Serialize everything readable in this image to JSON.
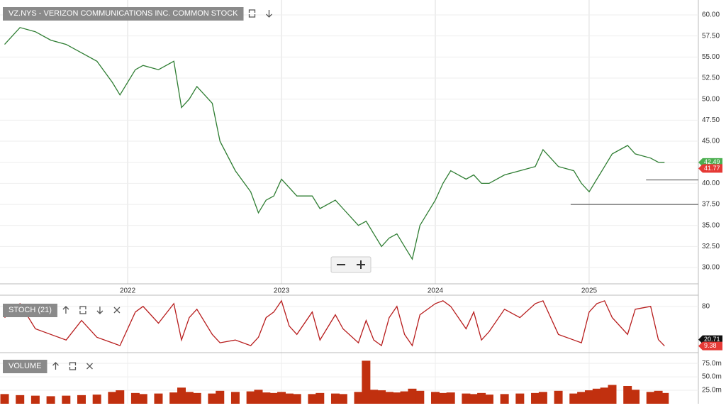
{
  "chart_data": [
    {
      "type": "line",
      "title": "VZ.NYS - VERIZON COMMUNICATIONS INC. COMMON STOCK",
      "color": "#2e7d32",
      "x": [
        2021.2,
        2021.3,
        2021.4,
        2021.5,
        2021.6,
        2021.7,
        2021.8,
        2021.9,
        2021.95,
        2022.05,
        2022.1,
        2022.2,
        2022.3,
        2022.35,
        2022.4,
        2022.45,
        2022.55,
        2022.6,
        2022.7,
        2022.8,
        2022.85,
        2022.9,
        2022.95,
        2023.0,
        2023.05,
        2023.1,
        2023.2,
        2023.25,
        2023.35,
        2023.4,
        2023.5,
        2023.55,
        2023.6,
        2023.65,
        2023.7,
        2023.75,
        2023.8,
        2023.85,
        2023.9,
        2024.0,
        2024.05,
        2024.1,
        2024.2,
        2024.25,
        2024.3,
        2024.35,
        2024.45,
        2024.55,
        2024.65,
        2024.7,
        2024.8,
        2024.9,
        2024.95,
        2025.0,
        2025.05,
        2025.1,
        2025.15,
        2025.25,
        2025.3,
        2025.4,
        2025.45,
        2025.49
      ],
      "values": [
        56.5,
        58.5,
        58,
        57,
        56.5,
        55.5,
        54.5,
        52,
        50.5,
        53.5,
        54,
        53.5,
        54.5,
        49,
        50,
        51.5,
        49.5,
        45,
        41.5,
        39,
        36.5,
        38,
        38.5,
        40.5,
        39.5,
        38.5,
        38.5,
        37,
        38,
        37,
        35,
        35.5,
        34,
        32.5,
        33.5,
        34,
        32.5,
        31,
        35,
        38,
        40,
        41.5,
        40.5,
        41,
        40,
        40,
        41,
        41.5,
        42,
        44,
        42,
        41.5,
        40,
        39,
        40.5,
        42,
        43.5,
        44.5,
        43.5,
        43,
        42.5,
        42.49
      ],
      "xlim": [
        2021.17,
        2025.71
      ],
      "xticks": [
        2022,
        2023,
        2024,
        2025
      ],
      "ylim": [
        28.07,
        61.77
      ],
      "yticks": [
        {
          "value": 60,
          "label": "60.00"
        },
        {
          "value": 57.5,
          "label": "57.50"
        },
        {
          "value": 55,
          "label": "55.00"
        },
        {
          "value": 52.5,
          "label": "52.50"
        },
        {
          "value": 50,
          "label": "50.00"
        },
        {
          "value": 47.5,
          "label": "47.50"
        },
        {
          "value": 45,
          "label": "45.00"
        },
        {
          "value": 42.5,
          "label": "42.50"
        },
        {
          "value": 40,
          "label": "40.00"
        },
        {
          "value": 37.5,
          "label": "37.50"
        },
        {
          "value": 35,
          "label": "35.00"
        },
        {
          "value": 32.5,
          "label": "32.50"
        },
        {
          "value": 30,
          "label": "30.00"
        }
      ],
      "grid": true,
      "tags": [
        {
          "value": 42.49,
          "color": "#4caf50"
        },
        {
          "value": 41.77,
          "color": "#e53935"
        }
      ],
      "hlines": [
        {
          "value": 37.5,
          "from": 2024.88
        },
        {
          "value": 40.4,
          "from": 2025.37
        }
      ]
    },
    {
      "type": "line",
      "title": "STOCH (21)",
      "color": "#b71c1c",
      "values": [
        60,
        85,
        40,
        30,
        20,
        55,
        25,
        15,
        10,
        70,
        80,
        50,
        85,
        20,
        60,
        75,
        30,
        15,
        20,
        10,
        25,
        60,
        70,
        90,
        45,
        30,
        70,
        20,
        65,
        40,
        15,
        55,
        20,
        10,
        60,
        80,
        30,
        10,
        65,
        85,
        90,
        80,
        40,
        70,
        20,
        35,
        75,
        60,
        85,
        90,
        30,
        20,
        15,
        70,
        85,
        90,
        60,
        30,
        75,
        80,
        20.71,
        9.38
      ],
      "ylim": [
        0,
        100
      ],
      "yticks": [
        80
      ],
      "tags": [
        {
          "value": 20.71,
          "color": "#111"
        },
        {
          "value": 9.38,
          "color": "#e53935"
        }
      ]
    },
    {
      "type": "bar",
      "title": "VOLUME",
      "color": "#c1300f",
      "values": [
        18000000,
        16000000,
        15000000,
        14000000,
        15000000,
        16000000,
        17000000,
        22000000,
        25000000,
        20000000,
        18000000,
        19000000,
        21000000,
        30000000,
        22000000,
        20000000,
        19000000,
        24000000,
        22000000,
        23000000,
        26000000,
        21000000,
        20000000,
        22000000,
        19000000,
        18000000,
        18000000,
        20000000,
        19000000,
        18000000,
        22000000,
        80000000,
        26000000,
        25000000,
        22000000,
        21000000,
        23000000,
        28000000,
        24000000,
        22000000,
        20000000,
        21000000,
        19000000,
        18000000,
        20000000,
        17000000,
        18000000,
        19000000,
        20000000,
        22000000,
        24000000,
        19000000,
        22000000,
        25000000,
        28000000,
        30000000,
        35000000,
        33000000,
        26000000,
        22000000,
        24000000,
        20000000
      ],
      "ylim": [
        0,
        95000000
      ],
      "yticks": [
        {
          "value": 75000000,
          "label": "75.0m"
        },
        {
          "value": 50000000,
          "label": "50.0m"
        },
        {
          "value": 25000000,
          "label": "25.0m"
        }
      ]
    }
  ]
}
